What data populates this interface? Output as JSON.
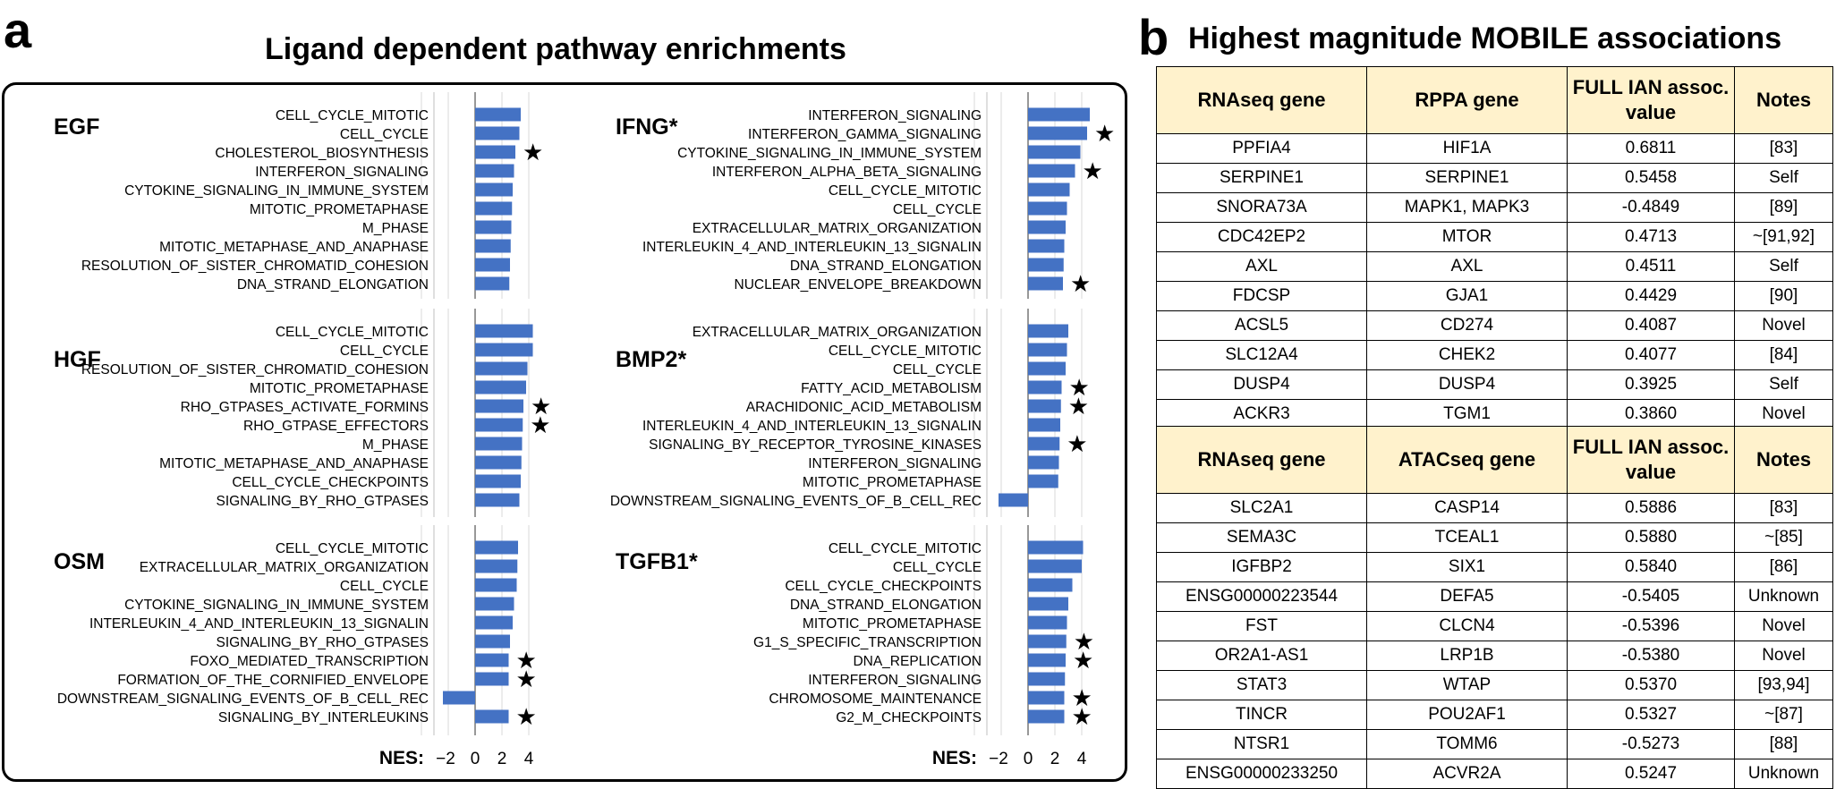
{
  "panel_a": {
    "letter": "a",
    "title": "Ligand dependent pathway enrichments",
    "nes_label": "NES:",
    "star_symbol": "★",
    "bar_color": "#4472c4"
  },
  "panel_b": {
    "letter": "b",
    "title": "Highest magnitude MOBILE associations",
    "header_color": "#fff2cc"
  },
  "chart_data": {
    "type": "bar",
    "orientation": "horizontal",
    "title": "Ligand dependent pathway enrichments",
    "xlabel": "NES:",
    "xlim": [
      -3,
      4.5
    ],
    "xticks": [
      -2,
      0,
      2,
      4
    ],
    "panels": [
      {
        "name": "EGF",
        "column": "left",
        "row": 0,
        "categories": [
          {
            "label": "CELL_CYCLE_MITOTIC",
            "value": 3.4,
            "star": false
          },
          {
            "label": "CELL_CYCLE",
            "value": 3.3,
            "star": false
          },
          {
            "label": "CHOLESTEROL_BIOSYNTHESIS",
            "value": 3.0,
            "star": true
          },
          {
            "label": "INTERFERON_SIGNALING",
            "value": 2.9,
            "star": false
          },
          {
            "label": "CYTOKINE_SIGNALING_IN_IMMUNE_SYSTEM",
            "value": 2.8,
            "star": false
          },
          {
            "label": "MITOTIC_PROMETAPHASE",
            "value": 2.75,
            "star": false
          },
          {
            "label": "M_PHASE",
            "value": 2.7,
            "star": false
          },
          {
            "label": "MITOTIC_METAPHASE_AND_ANAPHASE",
            "value": 2.65,
            "star": false
          },
          {
            "label": "RESOLUTION_OF_SISTER_CHROMATID_COHESION",
            "value": 2.6,
            "star": false
          },
          {
            "label": "DNA_STRAND_ELONGATION",
            "value": 2.55,
            "star": false
          }
        ]
      },
      {
        "name": "HGF",
        "column": "left",
        "row": 1,
        "categories": [
          {
            "label": "CELL_CYCLE_MITOTIC",
            "value": 4.3,
            "star": false
          },
          {
            "label": "CELL_CYCLE",
            "value": 4.3,
            "star": false
          },
          {
            "label": "RESOLUTION_OF_SISTER_CHROMATID_COHESION",
            "value": 3.9,
            "star": false
          },
          {
            "label": "MITOTIC_PROMETAPHASE",
            "value": 3.8,
            "star": false
          },
          {
            "label": "RHO_GTPASES_ACTIVATE_FORMINS",
            "value": 3.6,
            "star": true
          },
          {
            "label": "RHO_GTPASE_EFFECTORS",
            "value": 3.55,
            "star": true
          },
          {
            "label": "M_PHASE",
            "value": 3.5,
            "star": false
          },
          {
            "label": "MITOTIC_METAPHASE_AND_ANAPHASE",
            "value": 3.45,
            "star": false
          },
          {
            "label": "CELL_CYCLE_CHECKPOINTS",
            "value": 3.4,
            "star": false
          },
          {
            "label": "SIGNALING_BY_RHO_GTPASES",
            "value": 3.3,
            "star": false
          }
        ]
      },
      {
        "name": "OSM",
        "column": "left",
        "row": 2,
        "categories": [
          {
            "label": "CELL_CYCLE_MITOTIC",
            "value": 3.2,
            "star": false
          },
          {
            "label": "EXTRACELLULAR_MATRIX_ORGANIZATION",
            "value": 3.15,
            "star": false
          },
          {
            "label": "CELL_CYCLE",
            "value": 3.1,
            "star": false
          },
          {
            "label": "CYTOKINE_SIGNALING_IN_IMMUNE_SYSTEM",
            "value": 2.9,
            "star": false
          },
          {
            "label": "INTERLEUKIN_4_AND_INTERLEUKIN_13_SIGNALIN",
            "value": 2.8,
            "star": false
          },
          {
            "label": "SIGNALING_BY_RHO_GTPASES",
            "value": 2.6,
            "star": false
          },
          {
            "label": "FOXO_MEDIATED_TRANSCRIPTION",
            "value": 2.5,
            "star": true
          },
          {
            "label": "FORMATION_OF_THE_CORNIFIED_ENVELOPE",
            "value": 2.5,
            "star": true
          },
          {
            "label": "DOWNSTREAM_SIGNALING_EVENTS_OF_B_CELL_REC",
            "value": -2.4,
            "star": false
          },
          {
            "label": "SIGNALING_BY_INTERLEUKINS",
            "value": 2.5,
            "star": true
          }
        ]
      },
      {
        "name": "IFNG*",
        "column": "right",
        "row": 0,
        "categories": [
          {
            "label": "INTERFERON_SIGNALING",
            "value": 4.6,
            "star": false
          },
          {
            "label": "INTERFERON_GAMMA_SIGNALING",
            "value": 4.4,
            "star": true
          },
          {
            "label": "CYTOKINE_SIGNALING_IN_IMMUNE_SYSTEM",
            "value": 3.9,
            "star": false
          },
          {
            "label": "INTERFERON_ALPHA_BETA_SIGNALING",
            "value": 3.5,
            "star": true
          },
          {
            "label": "CELL_CYCLE_MITOTIC",
            "value": 3.1,
            "star": false
          },
          {
            "label": "CELL_CYCLE",
            "value": 2.9,
            "star": false
          },
          {
            "label": "EXTRACELLULAR_MATRIX_ORGANIZATION",
            "value": 2.8,
            "star": false
          },
          {
            "label": "INTERLEUKIN_4_AND_INTERLEUKIN_13_SIGNALIN",
            "value": 2.7,
            "star": false
          },
          {
            "label": "DNA_STRAND_ELONGATION",
            "value": 2.65,
            "star": false
          },
          {
            "label": "NUCLEAR_ENVELOPE_BREAKDOWN",
            "value": 2.6,
            "star": true
          }
        ]
      },
      {
        "name": "BMP2*",
        "column": "right",
        "row": 1,
        "categories": [
          {
            "label": "EXTRACELLULAR_MATRIX_ORGANIZATION",
            "value": 3.0,
            "star": false
          },
          {
            "label": "CELL_CYCLE_MITOTIC",
            "value": 2.9,
            "star": false
          },
          {
            "label": "CELL_CYCLE",
            "value": 2.8,
            "star": false
          },
          {
            "label": "FATTY_ACID_METABOLISM",
            "value": 2.5,
            "star": true
          },
          {
            "label": "ARACHIDONIC_ACID_METABOLISM",
            "value": 2.45,
            "star": true
          },
          {
            "label": "INTERLEUKIN_4_AND_INTERLEUKIN_13_SIGNALIN",
            "value": 2.4,
            "star": false
          },
          {
            "label": "SIGNALING_BY_RECEPTOR_TYROSINE_KINASES",
            "value": 2.35,
            "star": true
          },
          {
            "label": "INTERFERON_SIGNALING",
            "value": 2.3,
            "star": false
          },
          {
            "label": "MITOTIC_PROMETAPHASE",
            "value": 2.25,
            "star": false
          },
          {
            "label": "DOWNSTREAM_SIGNALING_EVENTS_OF_B_CELL_REC",
            "value": -2.2,
            "star": false
          }
        ]
      },
      {
        "name": "TGFB1*",
        "column": "right",
        "row": 2,
        "categories": [
          {
            "label": "CELL_CYCLE_MITOTIC",
            "value": 4.1,
            "star": false
          },
          {
            "label": "CELL_CYCLE",
            "value": 4.0,
            "star": false
          },
          {
            "label": "CELL_CYCLE_CHECKPOINTS",
            "value": 3.3,
            "star": false
          },
          {
            "label": "DNA_STRAND_ELONGATION",
            "value": 3.0,
            "star": false
          },
          {
            "label": "MITOTIC_PROMETAPHASE",
            "value": 2.9,
            "star": false
          },
          {
            "label": "G1_S_SPECIFIC_TRANSCRIPTION",
            "value": 2.85,
            "star": true
          },
          {
            "label": "DNA_REPLICATION",
            "value": 2.8,
            "star": true
          },
          {
            "label": "INTERFERON_SIGNALING",
            "value": 2.75,
            "star": false
          },
          {
            "label": "CHROMOSOME_MAINTENANCE",
            "value": 2.7,
            "star": true
          },
          {
            "label": "G2_M_CHECKPOINTS",
            "value": 2.7,
            "star": true
          }
        ]
      }
    ]
  },
  "tables": [
    {
      "headers": [
        "RNAseq gene",
        "RPPA gene",
        "FULL IAN assoc. value",
        "Notes"
      ],
      "rows": [
        [
          "PPFIA4",
          "HIF1A",
          "0.6811",
          "[83]"
        ],
        [
          "SERPINE1",
          "SERPINE1",
          "0.5458",
          "Self"
        ],
        [
          "SNORA73A",
          "MAPK1, MAPK3",
          "-0.4849",
          "[89]"
        ],
        [
          "CDC42EP2",
          "MTOR",
          "0.4713",
          "~[91,92]"
        ],
        [
          "AXL",
          "AXL",
          "0.4511",
          "Self"
        ],
        [
          "FDCSP",
          "GJA1",
          "0.4429",
          "[90]"
        ],
        [
          "ACSL5",
          "CD274",
          "0.4087",
          "Novel"
        ],
        [
          "SLC12A4",
          "CHEK2",
          "0.4077",
          "[84]"
        ],
        [
          "DUSP4",
          "DUSP4",
          "0.3925",
          "Self"
        ],
        [
          "ACKR3",
          "TGM1",
          "0.3860",
          "Novel"
        ]
      ]
    },
    {
      "headers": [
        "RNAseq gene",
        "ATACseq gene",
        "FULL IAN assoc. value",
        "Notes"
      ],
      "rows": [
        [
          "SLC2A1",
          "CASP14",
          "0.5886",
          "[83]"
        ],
        [
          "SEMA3C",
          "TCEAL1",
          "0.5880",
          "~[85]"
        ],
        [
          "IGFBP2",
          "SIX1",
          "0.5840",
          "[86]"
        ],
        [
          "ENSG00000223544",
          "DEFA5",
          "-0.5405",
          "Unknown"
        ],
        [
          "FST",
          "CLCN4",
          "-0.5396",
          "Novel"
        ],
        [
          "OR2A1-AS1",
          "LRP1B",
          "-0.5380",
          "Novel"
        ],
        [
          "STAT3",
          "WTAP",
          "0.5370",
          "[93,94]"
        ],
        [
          "TINCR",
          "POU2AF1",
          "0.5327",
          "~[87]"
        ],
        [
          "NTSR1",
          "TOMM6",
          "-0.5273",
          "[88]"
        ],
        [
          "ENSG00000233250",
          "ACVR2A",
          "0.5247",
          "Unknown"
        ]
      ]
    }
  ]
}
